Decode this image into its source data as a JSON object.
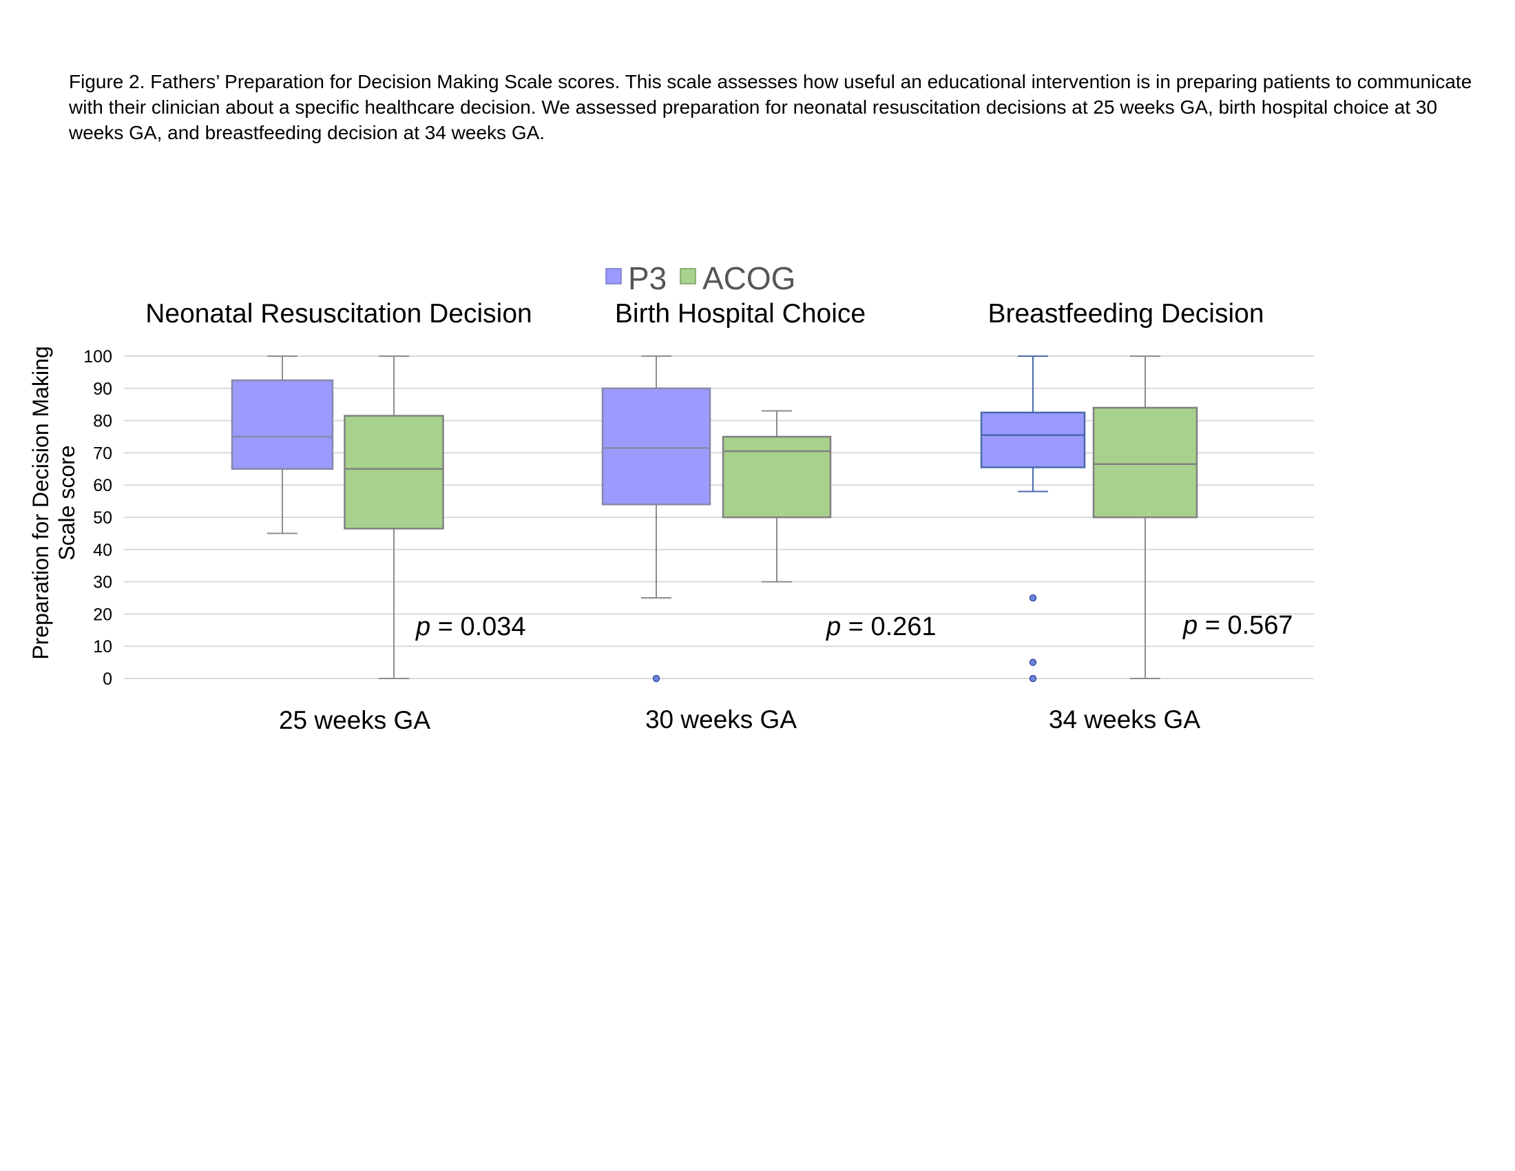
{
  "caption": "Figure 2. Fathers’ Preparation for Decision Making Scale scores. This scale assesses how useful an educational intervention is in preparing patients to communicate with their clinician about a specific healthcare decision. We assessed preparation for neonatal resuscitation decisions at 25 weeks GA, birth hospital choice at 30 weeks GA, and breastfeeding decision at 34 weeks GA.",
  "colors": {
    "p3_fill": "#9b9bfd",
    "p3_stroke": "#8888aa",
    "p3_stroke_dark": "#4a6aa8",
    "acog_fill": "#a8d18d",
    "acog_stroke": "#808080",
    "grid": "#d9d9d9",
    "whisker": "#8c8c8c",
    "outlier": "#6d85e0"
  },
  "chart_data": {
    "type": "box",
    "ylabel_line1": "Preparation for Decision Making",
    "ylabel_line2": "Scale score",
    "ylim": [
      0,
      100
    ],
    "yticks": [
      "0",
      "10",
      "20",
      "30",
      "40",
      "50",
      "60",
      "70",
      "80",
      "90",
      "100"
    ],
    "legend": {
      "placement": "top-center",
      "entries": [
        "P3",
        "ACOG"
      ]
    },
    "grid": true,
    "panels": [
      {
        "title": "Neonatal Resuscitation Decision",
        "xlabel": "25 weeks GA",
        "p_prefix": "p",
        "p_rest": " = 0.034",
        "boxes": [
          {
            "series": "P3",
            "min": 45,
            "q1": 65,
            "median": 75,
            "q3": 92.5,
            "max": 100,
            "outliers": []
          },
          {
            "series": "ACOG",
            "min": 0,
            "q1": 46.5,
            "median": 65,
            "q3": 81.5,
            "max": 100,
            "outliers": []
          }
        ]
      },
      {
        "title": "Birth Hospital Choice",
        "xlabel": "30 weeks GA",
        "p_prefix": "p",
        "p_rest": " = 0.261",
        "boxes": [
          {
            "series": "P3",
            "min": 25,
            "q1": 54,
            "median": 71.5,
            "q3": 90,
            "max": 100,
            "outliers": [
              0
            ]
          },
          {
            "series": "ACOG",
            "min": 30,
            "q1": 50,
            "median": 70.5,
            "q3": 75,
            "max": 83,
            "outliers": []
          }
        ]
      },
      {
        "title": "Breastfeeding Decision",
        "xlabel": "34 weeks GA",
        "p_prefix": "p",
        "p_rest": " = 0.567",
        "boxes": [
          {
            "series": "P3",
            "min": 58,
            "q1": 65.5,
            "median": 75.5,
            "q3": 82.5,
            "max": 100,
            "outliers": [
              25,
              5,
              0
            ]
          },
          {
            "series": "ACOG",
            "min": 0,
            "q1": 50,
            "median": 66.5,
            "q3": 84,
            "max": 100,
            "outliers": []
          }
        ]
      }
    ]
  }
}
